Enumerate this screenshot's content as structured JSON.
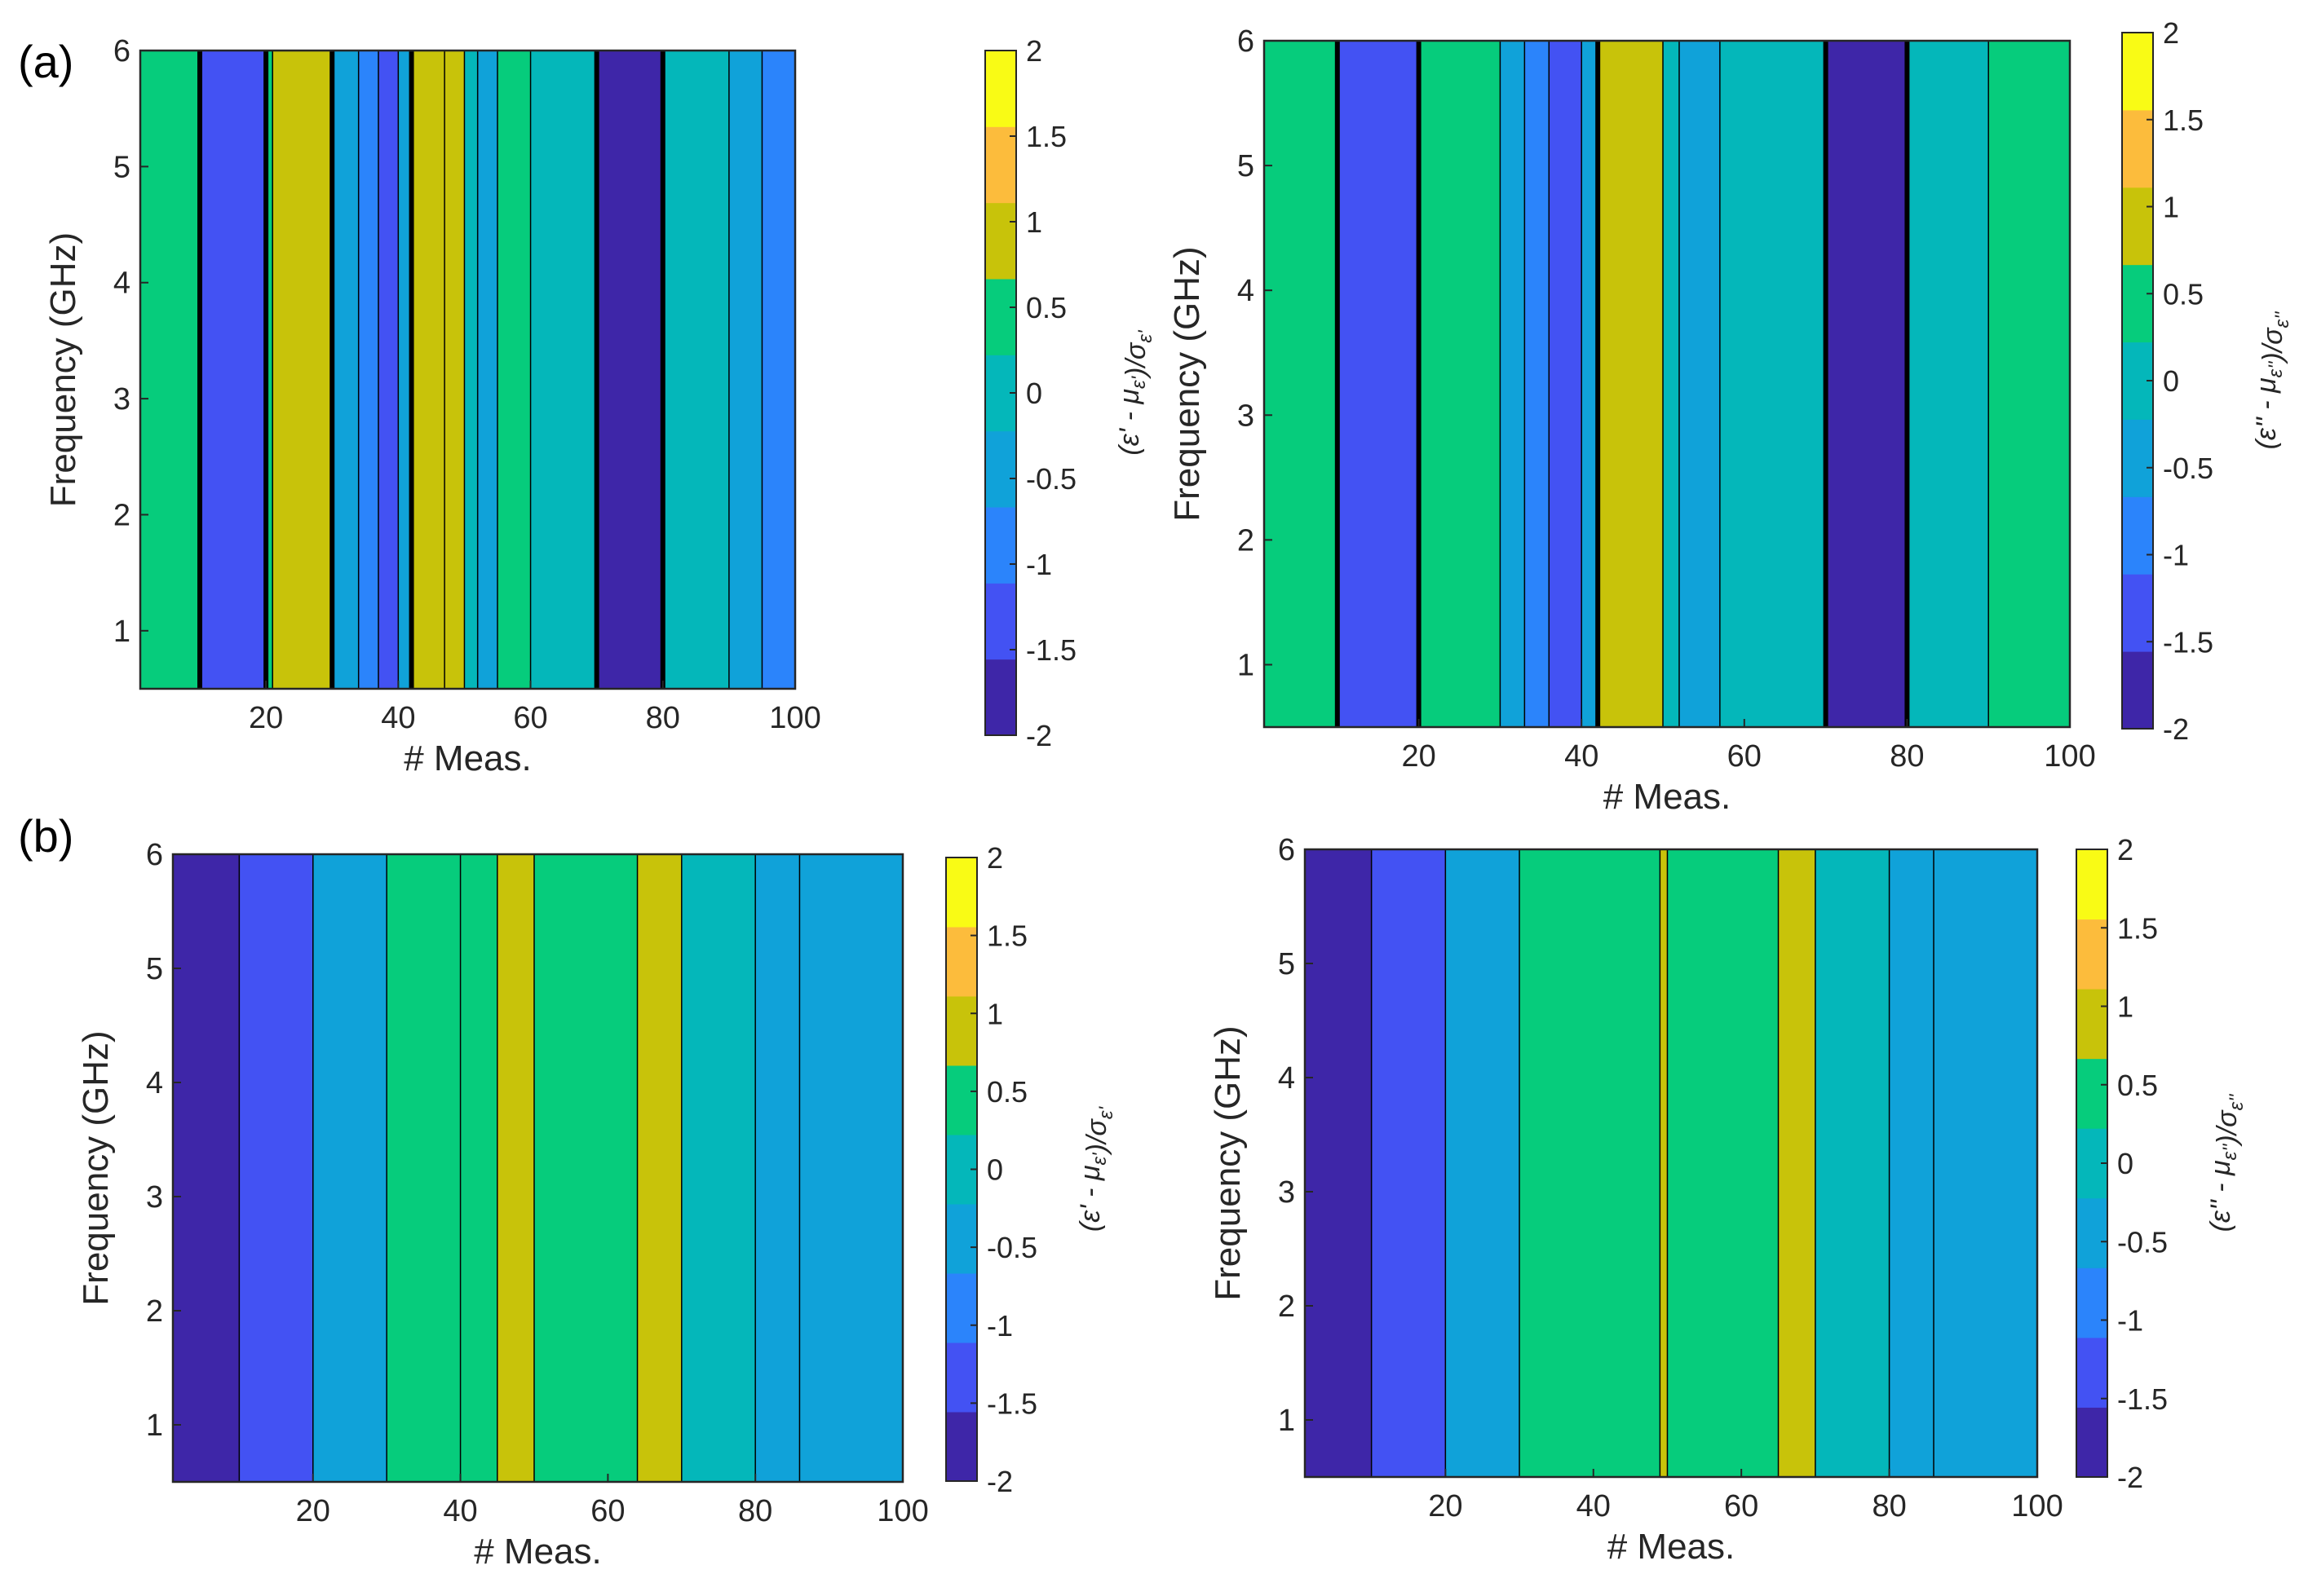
{
  "panel_labels": [
    "(a)",
    "(b)"
  ],
  "colormap": [
    "#3e26a8",
    "#4352f3",
    "#2b84fb",
    "#10a2d9",
    "#04b7ba",
    "#06cc7c",
    "#c8c30a",
    "#fcbc3c",
    "#f9fb15"
  ],
  "chart_data": [
    {
      "type": "heatmap",
      "panel": "(a)",
      "xlabel": "# Meas.",
      "ylabel": "Frequency (GHz)",
      "colorbar_label": "(ε' - μ_ε')/σ_ε'",
      "xlim": [
        1,
        100
      ],
      "ylim": [
        0.5,
        6
      ],
      "clim": [
        -2,
        2
      ],
      "xticks": [
        20,
        40,
        60,
        80,
        100
      ],
      "yticks": [
        1,
        2,
        3,
        4,
        5,
        6
      ],
      "cticks": [
        -2,
        -1.5,
        -1,
        -0.5,
        0,
        0.5,
        1,
        1.5,
        2
      ],
      "bands": [
        {
          "x0": 1,
          "x1": 10,
          "z": 0.3
        },
        {
          "x0": 10,
          "x1": 20,
          "z": -1.5
        },
        {
          "x0": 20,
          "x1": 21,
          "z": 0.5
        },
        {
          "x0": 21,
          "x1": 30,
          "z": 0.9
        },
        {
          "x0": 30,
          "x1": 34,
          "z": -0.4
        },
        {
          "x0": 34,
          "x1": 37,
          "z": -0.8
        },
        {
          "x0": 37,
          "x1": 40,
          "z": -1.3
        },
        {
          "x0": 40,
          "x1": 42,
          "z": -0.6
        },
        {
          "x0": 42,
          "x1": 47,
          "z": 0.9
        },
        {
          "x0": 47,
          "x1": 50,
          "z": 1.1
        },
        {
          "x0": 50,
          "x1": 52,
          "z": 0.2
        },
        {
          "x0": 52,
          "x1": 55,
          "z": -0.7
        },
        {
          "x0": 55,
          "x1": 60,
          "z": 0.4
        },
        {
          "x0": 60,
          "x1": 70,
          "z": 0.0
        },
        {
          "x0": 70,
          "x1": 80,
          "z": -1.9
        },
        {
          "x0": 80,
          "x1": 90,
          "z": -0.1
        },
        {
          "x0": 90,
          "x1": 95,
          "z": -0.4
        },
        {
          "x0": 95,
          "x1": 100,
          "z": -0.8
        }
      ]
    },
    {
      "type": "heatmap",
      "panel": "(a)",
      "xlabel": "# Meas.",
      "ylabel": "Frequency (GHz)",
      "colorbar_label": "(ε'' - μ_ε'')/σ_ε''",
      "xlim": [
        1,
        100
      ],
      "ylim": [
        0.5,
        6
      ],
      "clim": [
        -2,
        2
      ],
      "xticks": [
        20,
        40,
        60,
        80,
        100
      ],
      "yticks": [
        1,
        2,
        3,
        4,
        5,
        6
      ],
      "cticks": [
        -2,
        -1.5,
        -1,
        -0.5,
        0,
        0.5,
        1,
        1.5,
        2
      ],
      "bands": [
        {
          "x0": 1,
          "x1": 10,
          "z": 0.4
        },
        {
          "x0": 10,
          "x1": 20,
          "z": -1.5
        },
        {
          "x0": 20,
          "x1": 30,
          "z": 0.4
        },
        {
          "x0": 30,
          "x1": 33,
          "z": -0.3
        },
        {
          "x0": 33,
          "x1": 36,
          "z": -0.9
        },
        {
          "x0": 36,
          "x1": 40,
          "z": -1.4
        },
        {
          "x0": 40,
          "x1": 42,
          "z": -0.4
        },
        {
          "x0": 42,
          "x1": 50,
          "z": 1.0
        },
        {
          "x0": 50,
          "x1": 52,
          "z": 0.1
        },
        {
          "x0": 52,
          "x1": 57,
          "z": -0.6
        },
        {
          "x0": 57,
          "x1": 70,
          "z": 0.0
        },
        {
          "x0": 70,
          "x1": 80,
          "z": -1.8
        },
        {
          "x0": 80,
          "x1": 90,
          "z": 0.1
        },
        {
          "x0": 90,
          "x1": 100,
          "z": 0.4
        }
      ]
    },
    {
      "type": "heatmap",
      "panel": "(b)",
      "xlabel": "# Meas.",
      "ylabel": "Frequency (GHz)",
      "colorbar_label": "(ε' - μ_ε')/σ_ε'",
      "xlim": [
        1,
        100
      ],
      "ylim": [
        0.5,
        6
      ],
      "clim": [
        -2,
        2
      ],
      "xticks": [
        20,
        40,
        60,
        80,
        100
      ],
      "yticks": [
        1,
        2,
        3,
        4,
        5,
        6
      ],
      "cticks": [
        -2,
        -1.5,
        -1,
        -0.5,
        0,
        0.5,
        1,
        1.5,
        2
      ],
      "bands": [
        {
          "x0": 1,
          "x1": 10,
          "z": -1.9
        },
        {
          "x0": 10,
          "x1": 20,
          "z": -1.5
        },
        {
          "x0": 20,
          "x1": 30,
          "z": -0.4
        },
        {
          "x0": 30,
          "x1": 40,
          "z": 0.3
        },
        {
          "x0": 40,
          "x1": 45,
          "z": 0.4
        },
        {
          "x0": 45,
          "x1": 50,
          "z": 0.9
        },
        {
          "x0": 50,
          "x1": 64,
          "z": 0.4
        },
        {
          "x0": 64,
          "x1": 70,
          "z": 0.9
        },
        {
          "x0": 70,
          "x1": 80,
          "z": 0.2
        },
        {
          "x0": 80,
          "x1": 86,
          "z": -0.3
        },
        {
          "x0": 86,
          "x1": 100,
          "z": -0.6
        }
      ]
    },
    {
      "type": "heatmap",
      "panel": "(b)",
      "xlabel": "# Meas.",
      "ylabel": "Frequency (GHz)",
      "colorbar_label": "(ε'' - μ_ε'')/σ_ε''",
      "xlim": [
        1,
        100
      ],
      "ylim": [
        0.5,
        6
      ],
      "clim": [
        -2,
        2
      ],
      "xticks": [
        20,
        40,
        60,
        80,
        100
      ],
      "yticks": [
        1,
        2,
        3,
        4,
        5,
        6
      ],
      "cticks": [
        -2,
        -1.5,
        -1,
        -0.5,
        0,
        0.5,
        1,
        1.5,
        2
      ],
      "bands": [
        {
          "x0": 1,
          "x1": 10,
          "z": -1.9
        },
        {
          "x0": 10,
          "x1": 20,
          "z": -1.5
        },
        {
          "x0": 20,
          "x1": 30,
          "z": -0.3
        },
        {
          "x0": 30,
          "x1": 49,
          "z": 0.4
        },
        {
          "x0": 49,
          "x1": 50,
          "z": 0.9
        },
        {
          "x0": 50,
          "x1": 65,
          "z": 0.4
        },
        {
          "x0": 65,
          "x1": 70,
          "z": 0.9
        },
        {
          "x0": 70,
          "x1": 80,
          "z": 0.0
        },
        {
          "x0": 80,
          "x1": 86,
          "z": -0.4
        },
        {
          "x0": 86,
          "x1": 100,
          "z": -0.6
        }
      ]
    }
  ]
}
